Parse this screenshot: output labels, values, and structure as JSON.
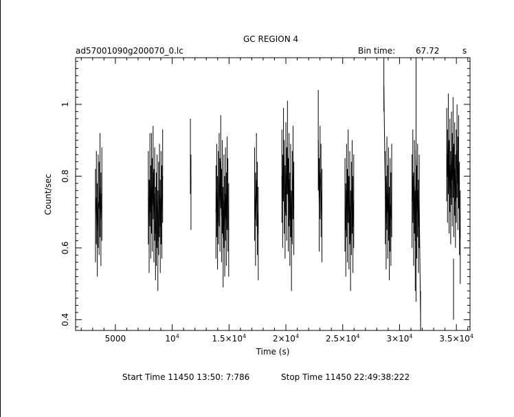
{
  "title": "GC REGION 4",
  "file_label": "ad57001090g200070_0.lc",
  "bin_time": {
    "label": "Bin time:",
    "value": "67.72",
    "unit": "s"
  },
  "footer": {
    "start": "Start Time 11450  13:50: 7:786",
    "stop": "Stop Time 11450  22:49:38:222"
  },
  "chart_data": {
    "type": "line",
    "xlabel": "Time (s)",
    "ylabel": "Count/sec",
    "xlim": [
      1500,
      36200
    ],
    "ylim": [
      0.37,
      1.13
    ],
    "grid": false,
    "xticks": [
      {
        "value": 5000,
        "mantissa": "5000",
        "exp": ""
      },
      {
        "value": 10000,
        "mantissa": "10",
        "exp": "4"
      },
      {
        "value": 15000,
        "mantissa": "1.5×10",
        "exp": "4"
      },
      {
        "value": 20000,
        "mantissa": "2×10",
        "exp": "4"
      },
      {
        "value": 25000,
        "mantissa": "2.5×10",
        "exp": "4"
      },
      {
        "value": 30000,
        "mantissa": "3×10",
        "exp": "4"
      },
      {
        "value": 35000,
        "mantissa": "3.5×10",
        "exp": "4"
      }
    ],
    "yticks": [
      {
        "value": 0.4,
        "label": "0.4"
      },
      {
        "value": 0.6,
        "label": "0.6"
      },
      {
        "value": 0.8,
        "label": "0.8"
      },
      {
        "value": 1.0,
        "label": "1"
      }
    ],
    "xminor": [
      2000,
      3000,
      4000,
      6000,
      7000,
      8000,
      9000,
      11000,
      12000,
      13000,
      14000,
      16000,
      17000,
      18000,
      19000,
      21000,
      22000,
      23000,
      24000,
      26000,
      27000,
      28000,
      29000,
      31000,
      32000,
      33000,
      34000,
      36000
    ],
    "yminor": [
      0.38,
      0.42,
      0.44,
      0.46,
      0.48,
      0.5,
      0.52,
      0.54,
      0.56,
      0.58,
      0.62,
      0.64,
      0.66,
      0.68,
      0.7,
      0.72,
      0.74,
      0.76,
      0.78,
      0.82,
      0.84,
      0.86,
      0.88,
      0.9,
      0.92,
      0.94,
      0.96,
      0.98,
      1.02,
      1.04,
      1.06,
      1.08,
      1.1,
      1.12
    ],
    "points": [
      [
        3250,
        0.69,
        0.82,
        0.56
      ],
      [
        3330,
        0.74,
        0.87,
        0.61
      ],
      [
        3410,
        0.65,
        0.78,
        0.52
      ],
      [
        3490,
        0.73,
        0.86,
        0.6
      ],
      [
        3570,
        0.71,
        0.84,
        0.58
      ],
      [
        3650,
        0.77,
        0.92,
        0.63
      ],
      [
        3730,
        0.68,
        0.81,
        0.55
      ],
      [
        3810,
        0.75,
        0.88,
        0.62
      ],
      [
        7900,
        0.74,
        0.87,
        0.61
      ],
      [
        7970,
        0.66,
        0.79,
        0.53
      ],
      [
        8040,
        0.79,
        0.92,
        0.66
      ],
      [
        8110,
        0.7,
        0.83,
        0.57
      ],
      [
        8180,
        0.78,
        0.92,
        0.64
      ],
      [
        8250,
        0.72,
        0.85,
        0.59
      ],
      [
        8320,
        0.81,
        0.94,
        0.68
      ],
      [
        8390,
        0.69,
        0.82,
        0.56
      ],
      [
        8460,
        0.75,
        0.88,
        0.62
      ],
      [
        8530,
        0.64,
        0.77,
        0.51
      ],
      [
        8600,
        0.68,
        0.81,
        0.55
      ],
      [
        8670,
        0.73,
        0.86,
        0.6
      ],
      [
        8740,
        0.62,
        0.76,
        0.48
      ],
      [
        8810,
        0.71,
        0.84,
        0.58
      ],
      [
        8880,
        0.76,
        0.89,
        0.63
      ],
      [
        8950,
        0.66,
        0.79,
        0.53
      ],
      [
        9020,
        0.74,
        0.87,
        0.61
      ],
      [
        9090,
        0.7,
        0.83,
        0.57
      ],
      [
        9160,
        0.8,
        0.93,
        0.67
      ],
      [
        11600,
        0.82,
        0.96,
        0.75
      ],
      [
        11650,
        0.78,
        0.86,
        0.65
      ],
      [
        13850,
        0.7,
        0.83,
        0.57
      ],
      [
        13920,
        0.76,
        0.89,
        0.63
      ],
      [
        13990,
        0.67,
        0.8,
        0.54
      ],
      [
        14060,
        0.74,
        0.87,
        0.61
      ],
      [
        14130,
        0.79,
        0.92,
        0.66
      ],
      [
        14200,
        0.72,
        0.85,
        0.59
      ],
      [
        14270,
        0.84,
        0.97,
        0.71
      ],
      [
        14340,
        0.69,
        0.82,
        0.56
      ],
      [
        14410,
        0.77,
        0.9,
        0.64
      ],
      [
        14480,
        0.63,
        0.77,
        0.49
      ],
      [
        14550,
        0.73,
        0.86,
        0.6
      ],
      [
        14620,
        0.66,
        0.8,
        0.52
      ],
      [
        14690,
        0.75,
        0.88,
        0.62
      ],
      [
        14760,
        0.68,
        0.81,
        0.55
      ],
      [
        14830,
        0.78,
        0.91,
        0.65
      ],
      [
        14900,
        0.72,
        0.85,
        0.59
      ],
      [
        14970,
        0.65,
        0.78,
        0.52
      ],
      [
        17250,
        0.75,
        0.88,
        0.62
      ],
      [
        17330,
        0.68,
        0.81,
        0.55
      ],
      [
        17410,
        0.79,
        0.92,
        0.66
      ],
      [
        17490,
        0.71,
        0.84,
        0.58
      ],
      [
        17570,
        0.64,
        0.77,
        0.51
      ],
      [
        19650,
        0.8,
        0.93,
        0.67
      ],
      [
        19720,
        0.73,
        0.86,
        0.6
      ],
      [
        19790,
        0.86,
        0.99,
        0.73
      ],
      [
        19860,
        0.77,
        0.9,
        0.64
      ],
      [
        19930,
        0.7,
        0.83,
        0.57
      ],
      [
        20000,
        0.82,
        0.95,
        0.69
      ],
      [
        20070,
        0.75,
        0.88,
        0.62
      ],
      [
        20140,
        0.88,
        1.01,
        0.75
      ],
      [
        20210,
        0.72,
        0.85,
        0.59
      ],
      [
        20280,
        0.79,
        0.92,
        0.66
      ],
      [
        20350,
        0.68,
        0.81,
        0.55
      ],
      [
        20420,
        0.76,
        0.89,
        0.63
      ],
      [
        20490,
        0.62,
        0.76,
        0.48
      ],
      [
        20560,
        0.74,
        0.87,
        0.61
      ],
      [
        20630,
        0.81,
        0.94,
        0.68
      ],
      [
        20700,
        0.71,
        0.84,
        0.58
      ],
      [
        22850,
        0.9,
        1.04,
        0.76
      ],
      [
        22930,
        0.72,
        0.85,
        0.59
      ],
      [
        23010,
        0.81,
        0.94,
        0.68
      ],
      [
        23090,
        0.76,
        0.89,
        0.63
      ],
      [
        23170,
        0.69,
        0.82,
        0.56
      ],
      [
        25200,
        0.72,
        0.85,
        0.59
      ],
      [
        25270,
        0.65,
        0.78,
        0.52
      ],
      [
        25340,
        0.76,
        0.89,
        0.63
      ],
      [
        25410,
        0.69,
        0.82,
        0.56
      ],
      [
        25480,
        0.8,
        0.93,
        0.67
      ],
      [
        25550,
        0.67,
        0.8,
        0.54
      ],
      [
        25620,
        0.74,
        0.87,
        0.61
      ],
      [
        25690,
        0.62,
        0.76,
        0.48
      ],
      [
        25760,
        0.71,
        0.84,
        0.58
      ],
      [
        25830,
        0.77,
        0.9,
        0.64
      ],
      [
        25900,
        0.66,
        0.8,
        0.53
      ],
      [
        25970,
        0.73,
        0.86,
        0.6
      ],
      [
        28620,
        1.05,
        1.13,
        0.98
      ],
      [
        28750,
        0.74,
        0.87,
        0.61
      ],
      [
        28820,
        0.67,
        0.8,
        0.54
      ],
      [
        28890,
        0.78,
        0.91,
        0.65
      ],
      [
        28960,
        0.7,
        0.83,
        0.57
      ],
      [
        29030,
        0.75,
        0.88,
        0.62
      ],
      [
        29100,
        0.64,
        0.77,
        0.51
      ],
      [
        29170,
        0.72,
        0.85,
        0.59
      ],
      [
        29240,
        0.68,
        0.81,
        0.55
      ],
      [
        29310,
        0.76,
        0.89,
        0.63
      ],
      [
        31100,
        0.73,
        0.86,
        0.6
      ],
      [
        31170,
        0.8,
        0.93,
        0.67
      ],
      [
        31240,
        0.68,
        0.81,
        0.55
      ],
      [
        31310,
        0.77,
        0.9,
        0.64
      ],
      [
        31380,
        0.62,
        0.76,
        0.48
      ],
      [
        31450,
        0.87,
        1.13,
        0.45
      ],
      [
        31520,
        0.7,
        0.83,
        0.57
      ],
      [
        31590,
        0.76,
        0.89,
        0.63
      ],
      [
        31660,
        0.66,
        0.79,
        0.53
      ],
      [
        31730,
        0.73,
        0.86,
        0.6
      ],
      [
        31850,
        0.4,
        0.48,
        0.37
      ],
      [
        34150,
        0.86,
        0.99,
        0.73
      ],
      [
        34220,
        0.8,
        0.93,
        0.67
      ],
      [
        34290,
        0.89,
        1.03,
        0.75
      ],
      [
        34360,
        0.77,
        0.9,
        0.64
      ],
      [
        34430,
        0.83,
        0.96,
        0.7
      ],
      [
        34500,
        0.74,
        0.87,
        0.61
      ],
      [
        34570,
        0.85,
        0.98,
        0.72
      ],
      [
        34640,
        0.79,
        0.92,
        0.66
      ],
      [
        34710,
        0.88,
        1.02,
        0.74
      ],
      [
        34780,
        0.76,
        0.89,
        0.63
      ],
      [
        34850,
        0.82,
        0.95,
        0.69
      ],
      [
        34920,
        0.73,
        0.86,
        0.6
      ],
      [
        34990,
        0.8,
        0.93,
        0.67
      ],
      [
        35060,
        0.87,
        1.0,
        0.74
      ],
      [
        35130,
        0.78,
        0.91,
        0.65
      ],
      [
        35200,
        0.84,
        0.97,
        0.71
      ],
      [
        35270,
        0.71,
        0.84,
        0.58
      ],
      [
        35340,
        0.63,
        0.76,
        0.5
      ],
      [
        34750,
        0.5,
        0.57,
        0.4
      ]
    ]
  }
}
